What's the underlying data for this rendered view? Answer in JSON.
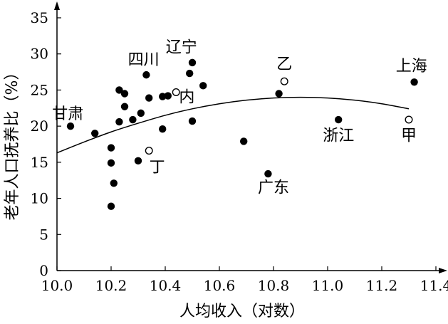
{
  "chart_data": {
    "type": "scatter",
    "xlabel": "人均收入（对数）",
    "ylabel": "老年人口抚养比（%）",
    "xlim": [
      10.0,
      11.4
    ],
    "ylim": [
      0,
      35
    ],
    "xticks": [
      "10.0",
      "10.2",
      "10.4",
      "10.6",
      "10.8",
      "11.0",
      "11.2",
      "11.4"
    ],
    "yticks": [
      "0",
      "5",
      "10",
      "15",
      "20",
      "25",
      "30",
      "35"
    ],
    "grid": false,
    "trend_curve": [
      [
        10.0,
        16.3
      ],
      [
        10.1,
        17.8
      ],
      [
        10.2,
        19.2
      ],
      [
        10.3,
        20.4
      ],
      [
        10.4,
        21.5
      ],
      [
        10.5,
        22.4
      ],
      [
        10.6,
        23.1
      ],
      [
        10.7,
        23.6
      ],
      [
        10.8,
        23.9
      ],
      [
        10.9,
        24.0
      ],
      [
        11.0,
        23.9
      ],
      [
        11.1,
        23.6
      ],
      [
        11.2,
        23.1
      ],
      [
        11.3,
        22.4
      ]
    ],
    "series": [
      {
        "marker": "filled",
        "points": [
          [
            10.05,
            20.0
          ],
          [
            10.14,
            19.0
          ],
          [
            10.2,
            17.0
          ],
          [
            10.2,
            14.9
          ],
          [
            10.21,
            12.1
          ],
          [
            10.2,
            8.9
          ],
          [
            10.23,
            20.6
          ],
          [
            10.23,
            25.0
          ],
          [
            10.25,
            24.5
          ],
          [
            10.25,
            22.7
          ],
          [
            10.28,
            20.9
          ],
          [
            10.3,
            15.2
          ],
          [
            10.31,
            21.8
          ],
          [
            10.33,
            27.1
          ],
          [
            10.34,
            23.9
          ],
          [
            10.39,
            19.6
          ],
          [
            10.39,
            24.1
          ],
          [
            10.41,
            24.2
          ],
          [
            10.49,
            27.3
          ],
          [
            10.5,
            28.8
          ],
          [
            10.5,
            20.7
          ],
          [
            10.54,
            25.6
          ],
          [
            10.69,
            17.9
          ],
          [
            10.78,
            13.4
          ],
          [
            10.82,
            24.5
          ],
          [
            11.04,
            20.9
          ],
          [
            11.32,
            26.1
          ]
        ]
      },
      {
        "marker": "open",
        "points": [
          [
            10.34,
            16.6
          ],
          [
            10.44,
            24.7
          ],
          [
            10.84,
            26.2
          ],
          [
            11.3,
            20.9
          ]
        ]
      }
    ],
    "annotations": [
      {
        "text": "甘肃",
        "x": 10.04,
        "y": 21.0
      },
      {
        "text": "四川",
        "x": 10.32,
        "y": 28.5
      },
      {
        "text": "辽宁",
        "x": 10.46,
        "y": 30.2
      },
      {
        "text": "内",
        "x": 10.48,
        "y": 23.3
      },
      {
        "text": "丁",
        "x": 10.37,
        "y": 13.6
      },
      {
        "text": "乙",
        "x": 10.84,
        "y": 27.9
      },
      {
        "text": "上海",
        "x": 11.31,
        "y": 27.6
      },
      {
        "text": "浙江",
        "x": 11.04,
        "y": 18.0
      },
      {
        "text": "甲",
        "x": 11.3,
        "y": 18.0
      },
      {
        "text": "广东",
        "x": 10.8,
        "y": 10.8
      }
    ]
  }
}
